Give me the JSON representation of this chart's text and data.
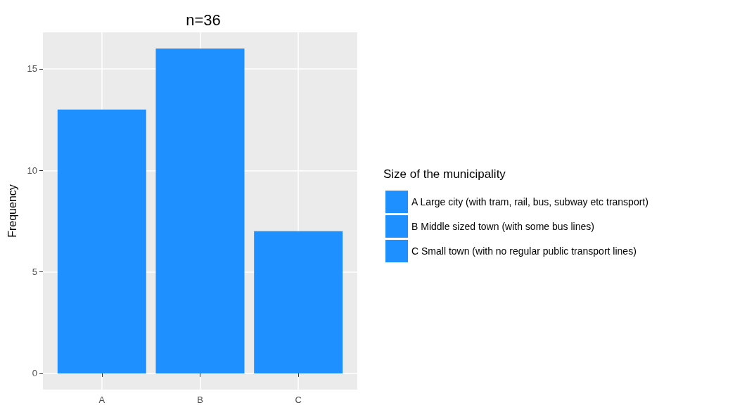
{
  "chart_data": {
    "type": "bar",
    "title": "n=36",
    "ylabel": "Frequency",
    "legend_title": "Size of the municipality",
    "categories": [
      "A",
      "B",
      "C"
    ],
    "series": [
      {
        "name": "A Large city (with tram, rail, bus, subway etc transport)",
        "color": "#1e90ff",
        "values": [
          13,
          null,
          null
        ]
      },
      {
        "name": "B Middle sized town (with some bus lines)",
        "color": "#1e90ff",
        "values": [
          null,
          16,
          null
        ]
      },
      {
        "name": "C Small town (with no regular public transport lines)",
        "color": "#1e90ff",
        "values": [
          null,
          null,
          7
        ]
      }
    ],
    "stacked": true,
    "ylim": [
      -0.8,
      16.8
    ],
    "yticks": [
      0,
      5,
      10,
      15
    ],
    "grid": true,
    "legend": "right"
  }
}
